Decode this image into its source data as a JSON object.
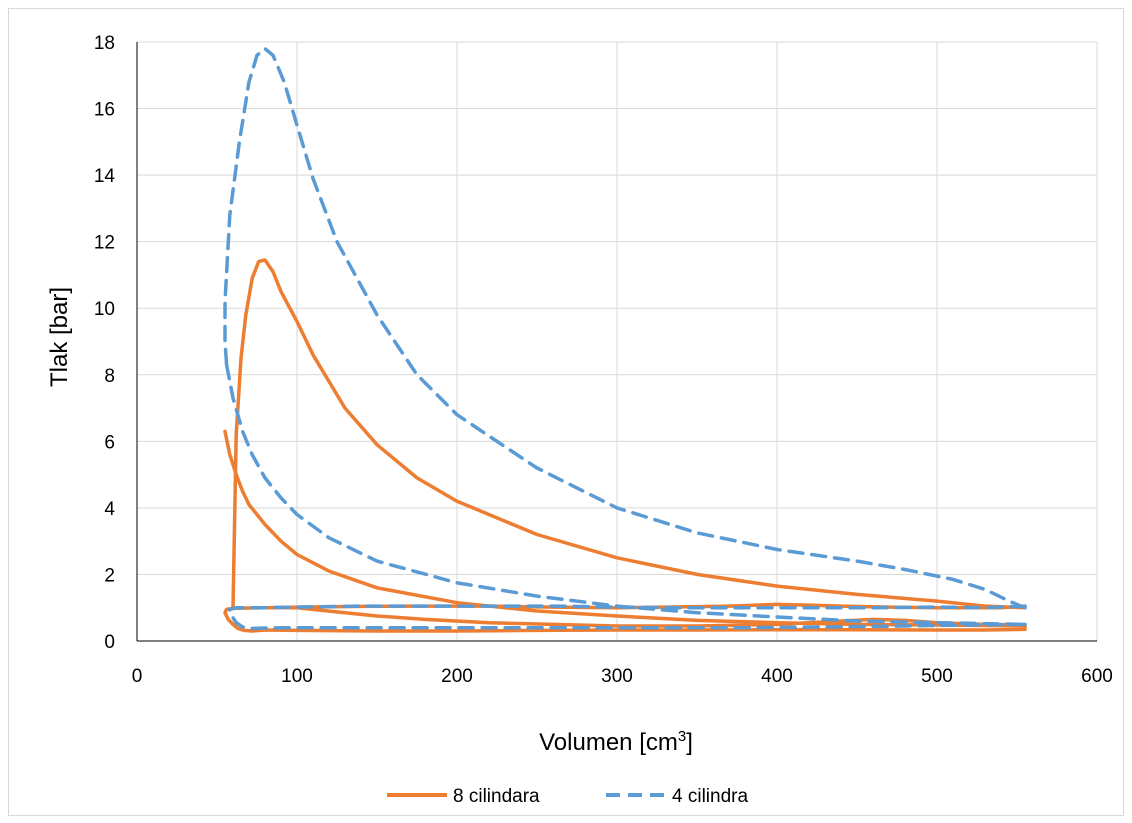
{
  "chart_data": {
    "type": "line",
    "title": "",
    "xlabel": "Volumen [cm",
    "xlabel_sup": "3",
    "xlabel_tail": "]",
    "ylabel": "Tlak [bar]",
    "xlim": [
      0,
      600
    ],
    "ylim": [
      0,
      18
    ],
    "x_ticks": [
      0,
      100,
      200,
      300,
      400,
      500,
      600
    ],
    "y_ticks": [
      0,
      2,
      4,
      6,
      8,
      10,
      12,
      14,
      16,
      18
    ],
    "grid": true,
    "legend_position": "bottom",
    "series": [
      {
        "name": "8 cilindara",
        "color": "#ED7D31",
        "dash": "solid",
        "points": [
          [
            555,
            1.05
          ],
          [
            540,
            1.0
          ],
          [
            520,
            1.0
          ],
          [
            500,
            1.0
          ],
          [
            470,
            1.02
          ],
          [
            440,
            1.05
          ],
          [
            420,
            1.08
          ],
          [
            400,
            1.1
          ],
          [
            370,
            1.05
          ],
          [
            330,
            1.02
          ],
          [
            300,
            1.0
          ],
          [
            260,
            1.02
          ],
          [
            220,
            1.05
          ],
          [
            180,
            1.05
          ],
          [
            140,
            1.04
          ],
          [
            100,
            1.02
          ],
          [
            80,
            1.0
          ],
          [
            60,
            0.98
          ],
          [
            56,
            0.95
          ],
          [
            55,
            0.85
          ],
          [
            57,
            0.65
          ],
          [
            60,
            0.5
          ],
          [
            63,
            0.38
          ],
          [
            67,
            0.32
          ],
          [
            72,
            0.3
          ],
          [
            80,
            0.33
          ],
          [
            100,
            0.32
          ],
          [
            150,
            0.3
          ],
          [
            200,
            0.3
          ],
          [
            250,
            0.32
          ],
          [
            300,
            0.33
          ],
          [
            350,
            0.33
          ],
          [
            400,
            0.34
          ],
          [
            450,
            0.34
          ],
          [
            500,
            0.33
          ],
          [
            530,
            0.33
          ],
          [
            555,
            0.35
          ],
          [
            555,
            0.48
          ],
          [
            530,
            0.5
          ],
          [
            500,
            0.55
          ],
          [
            480,
            0.62
          ],
          [
            460,
            0.65
          ],
          [
            400,
            0.5
          ],
          [
            350,
            0.45
          ],
          [
            300,
            0.45
          ],
          [
            260,
            0.5
          ],
          [
            220,
            0.55
          ],
          [
            180,
            0.65
          ],
          [
            150,
            0.75
          ],
          [
            130,
            0.85
          ],
          [
            100,
            1.0
          ],
          [
            80,
            1.0
          ],
          [
            60,
            0.98
          ]
        ],
        "cycle_upper": [
          [
            60,
            0.98
          ],
          [
            62,
            6.2
          ],
          [
            65,
            8.5
          ],
          [
            68,
            9.8
          ],
          [
            72,
            10.9
          ],
          [
            76,
            11.4
          ],
          [
            80,
            11.45
          ],
          [
            85,
            11.1
          ],
          [
            90,
            10.5
          ],
          [
            100,
            9.6
          ],
          [
            110,
            8.6
          ],
          [
            130,
            7.0
          ],
          [
            150,
            5.9
          ],
          [
            175,
            4.9
          ],
          [
            200,
            4.2
          ],
          [
            250,
            3.2
          ],
          [
            300,
            2.5
          ],
          [
            350,
            2.0
          ],
          [
            400,
            1.65
          ],
          [
            450,
            1.4
          ],
          [
            500,
            1.2
          ],
          [
            530,
            1.05
          ],
          [
            555,
            1.0
          ]
        ],
        "cycle_lower": [
          [
            55,
            6.3
          ],
          [
            58,
            5.6
          ],
          [
            62,
            5.0
          ],
          [
            66,
            4.5
          ],
          [
            70,
            4.1
          ],
          [
            80,
            3.5
          ],
          [
            90,
            3.0
          ],
          [
            100,
            2.6
          ],
          [
            120,
            2.1
          ],
          [
            150,
            1.6
          ],
          [
            200,
            1.15
          ],
          [
            250,
            0.9
          ],
          [
            300,
            0.75
          ],
          [
            350,
            0.62
          ],
          [
            400,
            0.55
          ],
          [
            450,
            0.5
          ],
          [
            500,
            0.48
          ],
          [
            555,
            0.45
          ]
        ]
      },
      {
        "name": "4 cilindra",
        "color": "#5B9BD5",
        "dash": "dashed",
        "points": [
          [
            555,
            1.05
          ],
          [
            530,
            1.0
          ],
          [
            500,
            1.02
          ],
          [
            460,
            1.0
          ],
          [
            420,
            1.0
          ],
          [
            380,
            1.0
          ],
          [
            340,
            1.0
          ],
          [
            300,
            1.02
          ],
          [
            260,
            1.05
          ],
          [
            220,
            1.05
          ],
          [
            180,
            1.05
          ],
          [
            140,
            1.05
          ],
          [
            100,
            1.02
          ],
          [
            80,
            1.0
          ],
          [
            70,
            1.0
          ],
          [
            62,
            1.0
          ],
          [
            58,
            0.95
          ],
          [
            58,
            0.85
          ],
          [
            62,
            0.55
          ],
          [
            66,
            0.42
          ],
          [
            72,
            0.38
          ],
          [
            90,
            0.4
          ],
          [
            130,
            0.4
          ],
          [
            180,
            0.4
          ],
          [
            230,
            0.4
          ],
          [
            280,
            0.4
          ],
          [
            330,
            0.4
          ],
          [
            380,
            0.4
          ],
          [
            430,
            0.42
          ],
          [
            480,
            0.45
          ],
          [
            520,
            0.48
          ],
          [
            555,
            0.5
          ]
        ],
        "cycle_upper": [
          [
            555,
            1.0
          ],
          [
            545,
            1.2
          ],
          [
            530,
            1.55
          ],
          [
            510,
            1.85
          ],
          [
            480,
            2.15
          ],
          [
            450,
            2.4
          ],
          [
            400,
            2.75
          ],
          [
            350,
            3.25
          ],
          [
            300,
            4.0
          ],
          [
            250,
            5.2
          ],
          [
            200,
            6.8
          ],
          [
            175,
            8.0
          ],
          [
            150,
            9.8
          ],
          [
            125,
            12.0
          ],
          [
            110,
            13.9
          ],
          [
            100,
            15.5
          ],
          [
            92,
            16.8
          ],
          [
            85,
            17.6
          ],
          [
            80,
            17.8
          ],
          [
            75,
            17.6
          ],
          [
            70,
            16.8
          ],
          [
            64,
            15.0
          ],
          [
            58,
            12.8
          ],
          [
            55,
            10.2
          ],
          [
            55,
            9.0
          ],
          [
            56,
            8.3
          ]
        ],
        "cycle_lower": [
          [
            56,
            8.3
          ],
          [
            60,
            7.3
          ],
          [
            66,
            6.3
          ],
          [
            72,
            5.6
          ],
          [
            80,
            4.9
          ],
          [
            90,
            4.3
          ],
          [
            100,
            3.8
          ],
          [
            120,
            3.1
          ],
          [
            150,
            2.4
          ],
          [
            200,
            1.75
          ],
          [
            250,
            1.35
          ],
          [
            300,
            1.05
          ],
          [
            350,
            0.85
          ],
          [
            400,
            0.72
          ],
          [
            450,
            0.6
          ],
          [
            500,
            0.55
          ],
          [
            555,
            0.5
          ]
        ]
      }
    ]
  }
}
